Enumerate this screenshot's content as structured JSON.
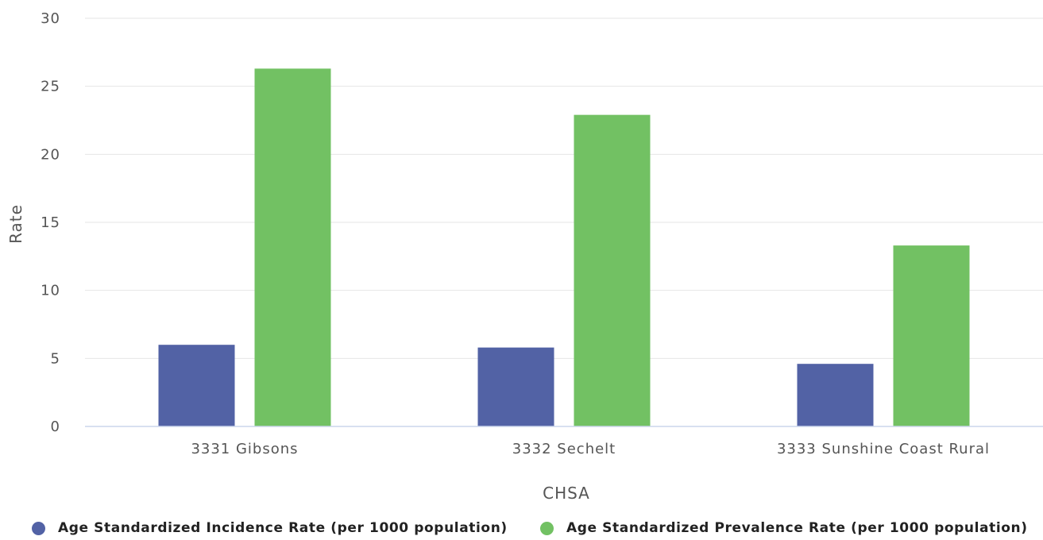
{
  "chart_data": {
    "type": "bar",
    "xlabel": "CHSA",
    "ylabel": "Rate",
    "categories": [
      "3331 Gibsons",
      "3332 Sechelt",
      "3333 Sunshine Coast Rural"
    ],
    "ylim": [
      0,
      30
    ],
    "yticks": [
      0,
      5,
      10,
      15,
      20,
      25,
      30
    ],
    "grid": true,
    "legend_position": "bottom",
    "series": [
      {
        "name": "Age Standardized Incidence Rate (per 1000 population)",
        "color": "#5262a5",
        "values": [
          6.0,
          5.8,
          4.6
        ]
      },
      {
        "name": "Age Standardized Prevalence Rate (per 1000 population)",
        "color": "#72c163",
        "values": [
          26.3,
          22.9,
          13.3
        ]
      }
    ]
  }
}
